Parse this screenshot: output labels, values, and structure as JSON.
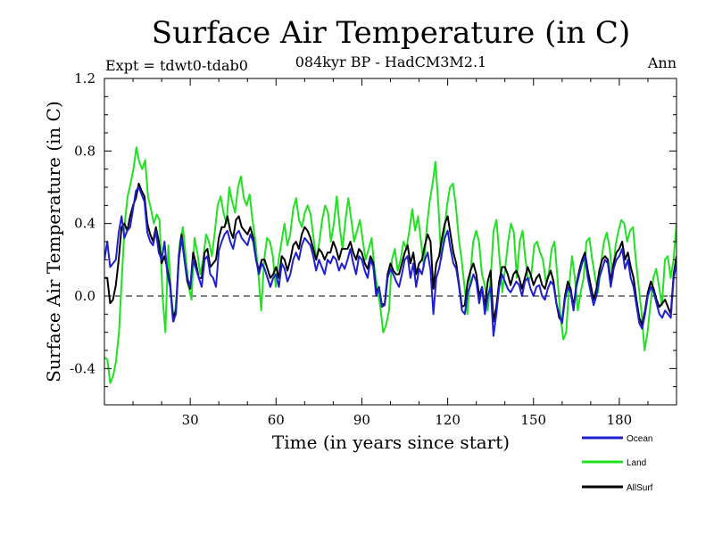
{
  "chart_data": {
    "type": "line",
    "title": "Surface Air Temperature (in C)",
    "subtitle": "084kyr BP - HadCM3M2.1",
    "left_label": "Expt = tdwt0-tdab0",
    "right_label": "Ann",
    "xlabel": "Time (in years since start)",
    "ylabel": "Surface Air Temperature (in C)",
    "xlim": [
      0,
      200
    ],
    "ylim": [
      -0.6,
      1.2
    ],
    "xticks": [
      30,
      60,
      90,
      120,
      150,
      180
    ],
    "yticks": [
      -0.4,
      0.0,
      0.4,
      0.8,
      1.2
    ],
    "ytick_labels": [
      "-0.4",
      "0.0",
      "0.4",
      "0.8",
      "1.2"
    ],
    "reference_line": 0.0,
    "legend_position": "bottom-right",
    "series": [
      {
        "name": "Ocean",
        "color": "#1f1fd0",
        "values": [
          0.2,
          0.3,
          0.16,
          0.18,
          0.2,
          0.35,
          0.44,
          0.32,
          0.36,
          0.38,
          0.48,
          0.58,
          0.6,
          0.56,
          0.52,
          0.35,
          0.3,
          0.28,
          0.36,
          0.24,
          0.2,
          0.3,
          0.12,
          0.05,
          -0.14,
          -0.1,
          0.2,
          0.32,
          0.2,
          0.1,
          0.05,
          0.2,
          0.15,
          0.1,
          0.05,
          0.2,
          0.22,
          0.12,
          0.1,
          0.05,
          0.25,
          0.3,
          0.34,
          0.36,
          0.3,
          0.26,
          0.34,
          0.36,
          0.32,
          0.3,
          0.28,
          0.34,
          0.3,
          0.2,
          0.12,
          0.18,
          0.15,
          0.1,
          0.05,
          0.1,
          0.12,
          0.05,
          0.18,
          0.15,
          0.08,
          0.12,
          0.2,
          0.24,
          0.2,
          0.28,
          0.32,
          0.3,
          0.28,
          0.22,
          0.14,
          0.2,
          0.16,
          0.12,
          0.2,
          0.18,
          0.22,
          0.2,
          0.14,
          0.18,
          0.15,
          0.2,
          0.26,
          0.18,
          0.12,
          0.22,
          0.2,
          0.14,
          0.1,
          0.2,
          0.16,
          0.0,
          0.05,
          -0.06,
          -0.05,
          0.1,
          0.15,
          0.12,
          0.08,
          0.05,
          0.12,
          0.2,
          0.22,
          0.1,
          0.18,
          0.05,
          0.15,
          0.12,
          0.2,
          0.24,
          0.14,
          -0.1,
          0.1,
          0.15,
          0.24,
          0.32,
          0.36,
          0.26,
          0.18,
          0.15,
          0.05,
          -0.08,
          -0.1,
          0.02,
          0.06,
          0.12,
          0.08,
          -0.04,
          0.05,
          -0.1,
          0.0,
          0.05,
          -0.22,
          -0.1,
          0.05,
          0.12,
          0.08,
          0.04,
          0.02,
          0.05,
          0.08,
          0.06,
          0.0,
          0.08,
          0.1,
          0.04,
          0.0,
          0.05,
          0.06,
          0.0,
          -0.02,
          0.04,
          0.08,
          0.06,
          -0.04,
          -0.1,
          -0.15,
          -0.02,
          0.05,
          0.02,
          -0.08,
          0.05,
          0.12,
          0.18,
          0.22,
          0.1,
          0.02,
          -0.05,
          0.0,
          0.1,
          0.15,
          0.2,
          0.18,
          0.05,
          0.15,
          0.2,
          0.22,
          0.26,
          0.15,
          0.2,
          0.1,
          0.05,
          -0.05,
          -0.15,
          -0.18,
          -0.1,
          0.0,
          0.05,
          0.02,
          -0.04,
          -0.1,
          -0.12,
          -0.08,
          -0.1,
          -0.12,
          0.1,
          0.18
        ]
      },
      {
        "name": "Land",
        "color": "#22e022",
        "values": [
          -0.34,
          -0.35,
          -0.48,
          -0.44,
          -0.36,
          -0.2,
          0.1,
          0.4,
          0.55,
          0.62,
          0.7,
          0.82,
          0.74,
          0.7,
          0.75,
          0.55,
          0.48,
          0.4,
          0.45,
          0.42,
          0.0,
          -0.2,
          0.28,
          0.0,
          -0.14,
          0.02,
          0.3,
          0.38,
          0.22,
          0.05,
          -0.02,
          0.32,
          0.24,
          0.12,
          0.2,
          0.34,
          0.3,
          0.22,
          0.35,
          0.5,
          0.55,
          0.46,
          0.4,
          0.6,
          0.52,
          0.46,
          0.6,
          0.66,
          0.54,
          0.5,
          0.56,
          0.42,
          0.3,
          0.12,
          -0.08,
          0.2,
          0.32,
          0.3,
          0.22,
          0.05,
          0.2,
          0.3,
          0.4,
          0.28,
          0.34,
          0.48,
          0.54,
          0.42,
          0.38,
          0.46,
          0.5,
          0.45,
          0.32,
          0.2,
          0.3,
          0.42,
          0.5,
          0.46,
          0.3,
          0.4,
          0.55,
          0.38,
          0.26,
          0.42,
          0.54,
          0.42,
          0.3,
          0.36,
          0.42,
          0.3,
          0.2,
          0.26,
          0.32,
          0.15,
          0.04,
          -0.06,
          -0.2,
          -0.16,
          -0.08,
          0.2,
          0.26,
          0.14,
          0.2,
          0.3,
          0.26,
          0.36,
          0.48,
          0.36,
          0.44,
          0.3,
          0.16,
          0.38,
          0.52,
          0.62,
          0.74,
          0.5,
          0.2,
          0.35,
          0.5,
          0.6,
          0.62,
          0.5,
          0.32,
          0.2,
          0.05,
          -0.1,
          0.12,
          0.3,
          0.36,
          0.3,
          0.12,
          0.06,
          -0.08,
          0.1,
          0.36,
          0.42,
          0.22,
          0.02,
          0.15,
          0.3,
          0.4,
          0.35,
          0.1,
          0.3,
          0.36,
          0.2,
          0.08,
          0.12,
          0.28,
          0.3,
          0.24,
          0.2,
          0.08,
          0.12,
          0.26,
          0.3,
          0.1,
          -0.1,
          -0.24,
          -0.2,
          0.05,
          0.22,
          0.1,
          -0.08,
          0.02,
          0.1,
          0.3,
          0.32,
          0.2,
          0.1,
          0.02,
          0.18,
          0.3,
          0.35,
          0.26,
          0.1,
          0.28,
          0.36,
          0.42,
          0.4,
          0.3,
          0.36,
          0.38,
          0.2,
          0.05,
          -0.1,
          -0.3,
          -0.2,
          -0.05,
          0.1,
          0.15,
          0.05,
          -0.05,
          0.2,
          0.22,
          0.1,
          0.2,
          0.4
        ]
      },
      {
        "name": "AllSurf",
        "color": "#000000",
        "values": [
          0.1,
          0.1,
          -0.04,
          -0.02,
          0.06,
          0.2,
          0.38,
          0.4,
          0.36,
          0.44,
          0.5,
          0.54,
          0.62,
          0.58,
          0.55,
          0.4,
          0.34,
          0.3,
          0.38,
          0.3,
          0.18,
          0.22,
          0.15,
          0.06,
          -0.12,
          -0.08,
          0.22,
          0.34,
          0.2,
          0.08,
          0.04,
          0.24,
          0.18,
          0.1,
          0.1,
          0.24,
          0.26,
          0.16,
          0.18,
          0.2,
          0.32,
          0.38,
          0.38,
          0.44,
          0.36,
          0.32,
          0.42,
          0.44,
          0.38,
          0.36,
          0.34,
          0.38,
          0.32,
          0.2,
          0.14,
          0.2,
          0.2,
          0.15,
          0.1,
          0.12,
          0.16,
          0.1,
          0.22,
          0.2,
          0.14,
          0.2,
          0.28,
          0.3,
          0.26,
          0.34,
          0.38,
          0.36,
          0.32,
          0.26,
          0.2,
          0.26,
          0.24,
          0.2,
          0.24,
          0.24,
          0.3,
          0.26,
          0.2,
          0.26,
          0.26,
          0.26,
          0.3,
          0.24,
          0.2,
          0.26,
          0.24,
          0.18,
          0.15,
          0.22,
          0.18,
          0.02,
          0.05,
          -0.05,
          -0.04,
          0.12,
          0.18,
          0.14,
          0.12,
          0.12,
          0.18,
          0.24,
          0.28,
          0.18,
          0.24,
          0.12,
          0.18,
          0.2,
          0.28,
          0.34,
          0.3,
          0.04,
          0.18,
          0.22,
          0.32,
          0.4,
          0.44,
          0.34,
          0.24,
          0.18,
          0.06,
          -0.06,
          -0.05,
          0.08,
          0.14,
          0.18,
          0.12,
          0.0,
          0.05,
          -0.06,
          0.08,
          0.14,
          -0.14,
          -0.06,
          0.08,
          0.16,
          0.16,
          0.12,
          0.06,
          0.12,
          0.14,
          0.1,
          0.04,
          0.1,
          0.16,
          0.12,
          0.06,
          0.1,
          0.12,
          0.06,
          0.04,
          0.1,
          0.14,
          0.08,
          -0.04,
          -0.12,
          -0.14,
          0.0,
          0.08,
          0.04,
          -0.06,
          0.06,
          0.14,
          0.2,
          0.24,
          0.14,
          0.06,
          -0.02,
          0.04,
          0.14,
          0.2,
          0.22,
          0.2,
          0.08,
          0.18,
          0.24,
          0.26,
          0.3,
          0.2,
          0.24,
          0.16,
          0.1,
          -0.02,
          -0.12,
          -0.16,
          -0.08,
          0.02,
          0.08,
          0.04,
          -0.02,
          -0.06,
          -0.04,
          -0.02,
          -0.06,
          -0.1,
          0.12,
          0.22
        ]
      }
    ]
  }
}
